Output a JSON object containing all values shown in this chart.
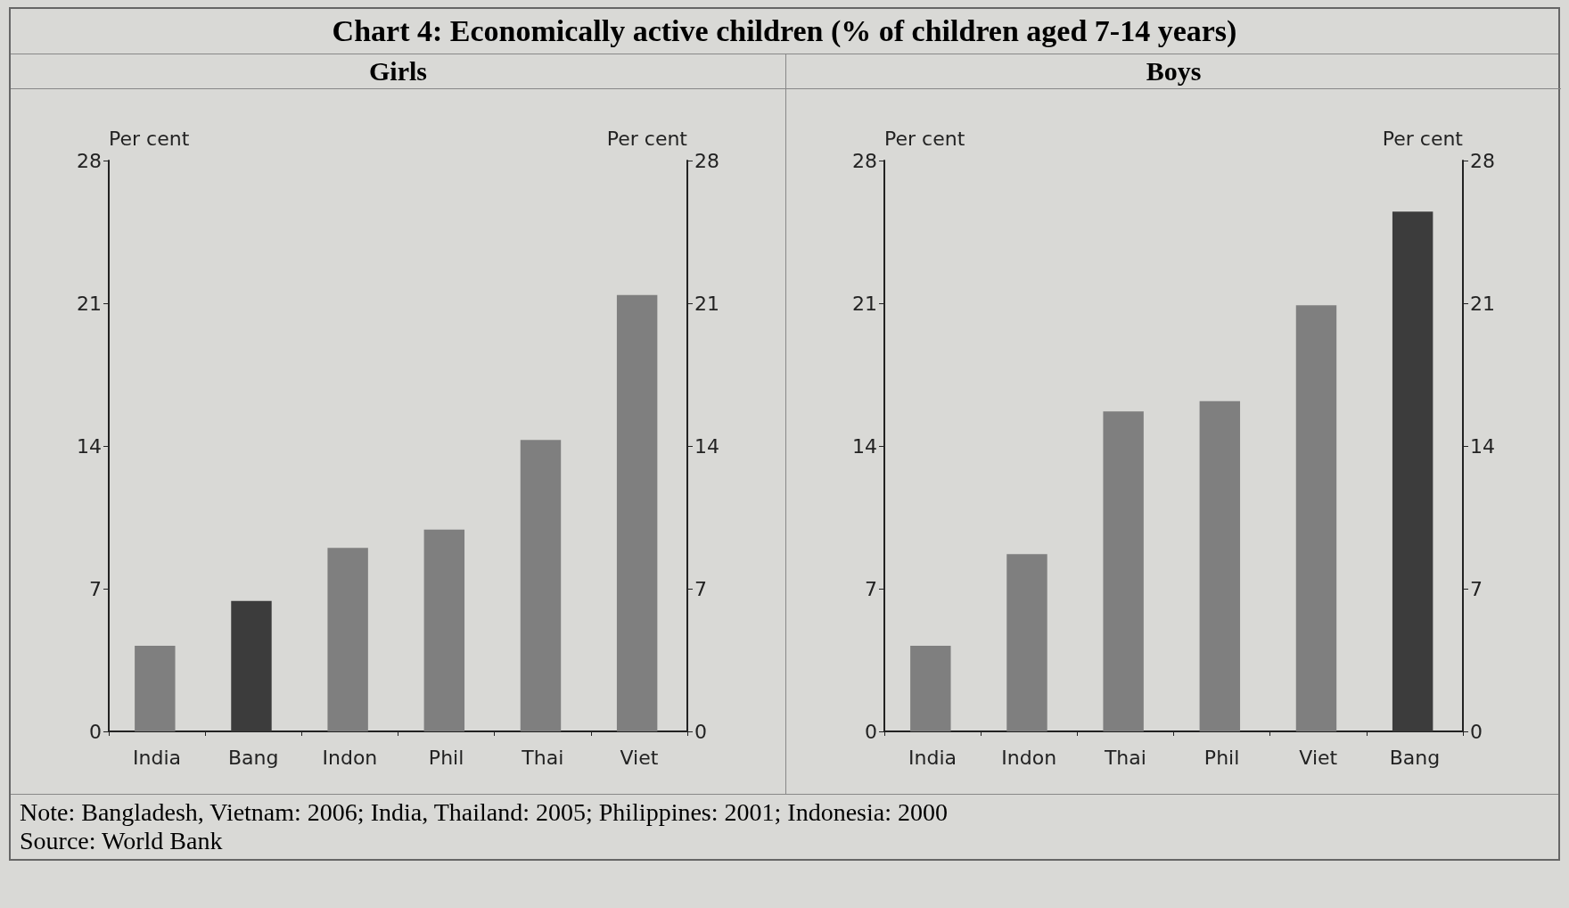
{
  "chart_data": [
    {
      "type": "bar",
      "title": "Girls",
      "annotations": [
        "Chart 4: Economically active children (% of children aged 7-14 years)"
      ],
      "ylabel": "Per cent",
      "y2label": "Per cent",
      "categories": [
        "India",
        "Bang",
        "Indon",
        "Phil",
        "Thai",
        "Viet"
      ],
      "values": [
        4.2,
        6.4,
        9.0,
        9.9,
        14.3,
        21.4
      ],
      "colors": [
        "#7f7f7f",
        "#3c3c3c",
        "#7f7f7f",
        "#7f7f7f",
        "#7f7f7f",
        "#7f7f7f"
      ],
      "ylim": [
        0,
        28
      ],
      "yticks": [
        0,
        7,
        14,
        21,
        28
      ],
      "y2lim": [
        0,
        28
      ],
      "y2ticks": [
        0,
        7,
        14,
        21,
        28
      ],
      "grid": false
    },
    {
      "type": "bar",
      "title": "Boys",
      "annotations": [
        "Note: Bangladesh, Vietnam: 2006; India, Thailand: 2005; Philippines: 2001; Indonesia: 2000",
        "Source: World Bank"
      ],
      "ylabel": "Per cent",
      "y2label": "Per cent",
      "categories": [
        "India",
        "Indon",
        "Thai",
        "Phil",
        "Viet",
        "Bang"
      ],
      "values": [
        4.2,
        8.7,
        15.7,
        16.2,
        20.9,
        25.5
      ],
      "colors": [
        "#7f7f7f",
        "#7f7f7f",
        "#7f7f7f",
        "#7f7f7f",
        "#7f7f7f",
        "#3c3c3c"
      ],
      "ylim": [
        0,
        28
      ],
      "yticks": [
        0,
        7,
        14,
        21,
        28
      ],
      "y2lim": [
        0,
        28
      ],
      "y2ticks": [
        0,
        7,
        14,
        21,
        28
      ],
      "grid": false
    }
  ]
}
